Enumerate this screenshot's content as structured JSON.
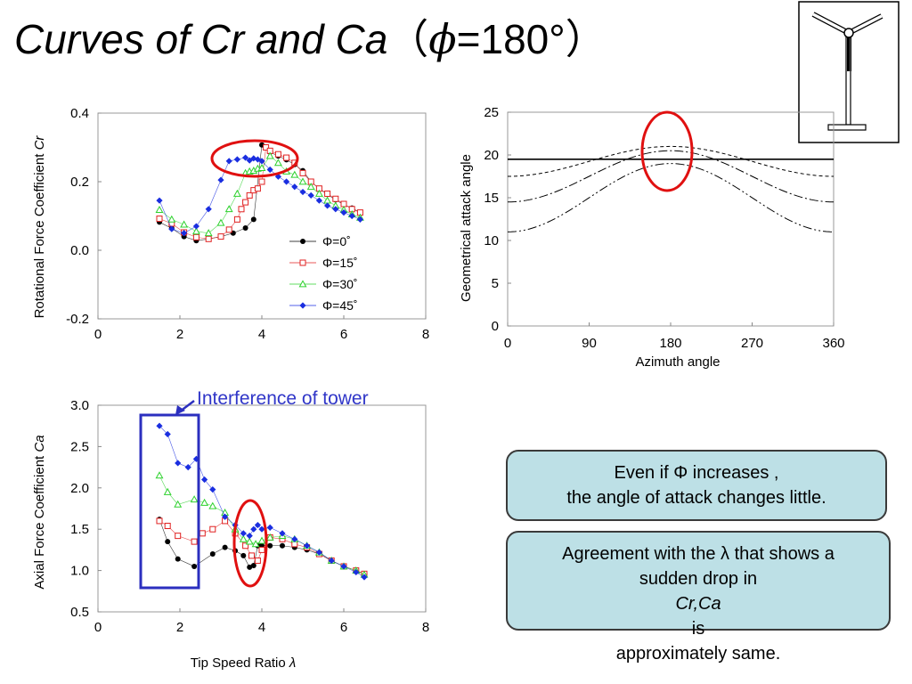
{
  "title": {
    "text_italic": "Curves of Cr and Ca",
    "open_paren": "（",
    "phi_symbol": "ϕ",
    "eq_value": "=180°",
    "close_paren": "）"
  },
  "annotation_tower": "Interference of tower",
  "callout1": {
    "line1": "Even if Φ increases ,",
    "line2": "the angle of attack changes little."
  },
  "callout2": {
    "line1": "Agreement with the λ that shows a",
    "line2a": "sudden drop in ",
    "line2b": "Cr,Ca",
    "line2c": " is",
    "line3": "approximately same."
  },
  "chart_data": [
    {
      "id": "cr",
      "type": "scatter",
      "ylabel_prefix": "Rotational Force Coefficient ",
      "ylabel_symbol": "Cr",
      "xlim": [
        0,
        8
      ],
      "ylim": [
        -0.2,
        0.4
      ],
      "xticks": [
        "0",
        "2",
        "4",
        "6",
        "8"
      ],
      "yticks": [
        "-0.2",
        "0.0",
        "0.2",
        "0.4"
      ],
      "legend_position": "center-right",
      "series": [
        {
          "name": "Φ=0˚",
          "marker": "circle",
          "color": "#000000",
          "x": [
            1.5,
            1.8,
            2.1,
            2.4,
            2.7,
            3.0,
            3.3,
            3.6,
            3.8,
            4.0,
            4.2,
            4.4,
            4.6,
            4.8,
            5.0,
            5.2,
            5.4,
            5.6,
            5.8,
            6.0,
            6.2,
            6.4
          ],
          "y": [
            0.082,
            0.064,
            0.04,
            0.028,
            0.033,
            0.04,
            0.05,
            0.065,
            0.09,
            0.307,
            0.286,
            0.275,
            0.264,
            0.25,
            0.232,
            0.2,
            0.18,
            0.163,
            0.147,
            0.133,
            0.123,
            0.11
          ]
        },
        {
          "name": "Φ=15˚",
          "marker": "square",
          "color": "#e02020",
          "x": [
            1.5,
            1.8,
            2.1,
            2.4,
            2.7,
            3.0,
            3.2,
            3.4,
            3.5,
            3.6,
            3.7,
            3.8,
            3.9,
            4.0,
            4.1,
            4.2,
            4.4,
            4.6,
            4.8,
            5.0,
            5.2,
            5.4,
            5.6,
            5.8,
            6.0,
            6.2,
            6.4
          ],
          "y": [
            0.092,
            0.078,
            0.052,
            0.038,
            0.033,
            0.04,
            0.06,
            0.09,
            0.12,
            0.14,
            0.16,
            0.175,
            0.18,
            0.2,
            0.3,
            0.29,
            0.28,
            0.27,
            0.255,
            0.225,
            0.2,
            0.18,
            0.165,
            0.15,
            0.135,
            0.12,
            0.11
          ]
        },
        {
          "name": "Φ=30˚",
          "marker": "triangle",
          "color": "#2dd12d",
          "x": [
            1.5,
            1.8,
            2.1,
            2.4,
            2.7,
            3.0,
            3.2,
            3.4,
            3.6,
            3.7,
            3.8,
            3.9,
            4.0,
            4.2,
            4.4,
            4.6,
            4.8,
            5.0,
            5.2,
            5.4,
            5.6,
            5.8,
            6.0,
            6.2,
            6.4
          ],
          "y": [
            0.118,
            0.09,
            0.075,
            0.055,
            0.05,
            0.08,
            0.12,
            0.165,
            0.225,
            0.23,
            0.232,
            0.238,
            0.24,
            0.275,
            0.255,
            0.23,
            0.22,
            0.2,
            0.185,
            0.165,
            0.145,
            0.13,
            0.118,
            0.105,
            0.095
          ]
        },
        {
          "name": "Φ=45˚",
          "marker": "diamond",
          "color": "#1a2ee0",
          "x": [
            1.5,
            1.8,
            2.1,
            2.4,
            2.7,
            3.0,
            3.2,
            3.4,
            3.6,
            3.7,
            3.8,
            3.9,
            4.0,
            4.2,
            4.4,
            4.6,
            4.8,
            5.0,
            5.2,
            5.4,
            5.6,
            5.8,
            6.0,
            6.2,
            6.4
          ],
          "y": [
            0.145,
            0.062,
            0.05,
            0.07,
            0.12,
            0.205,
            0.26,
            0.265,
            0.27,
            0.262,
            0.268,
            0.265,
            0.26,
            0.235,
            0.215,
            0.2,
            0.185,
            0.17,
            0.16,
            0.145,
            0.13,
            0.12,
            0.11,
            0.1,
            0.09
          ]
        }
      ]
    },
    {
      "id": "geo",
      "type": "line",
      "xlabel": "Azimuth angle",
      "ylabel": "Geometrical attack angle",
      "xlim": [
        0,
        360
      ],
      "ylim": [
        0,
        25
      ],
      "xticks": [
        "0",
        "90",
        "180",
        "270",
        "360"
      ],
      "yticks": [
        "0",
        "5",
        "10",
        "15",
        "20",
        "25"
      ],
      "series": [
        {
          "style": "solid",
          "base": 19.5,
          "peak": 19.5
        },
        {
          "style": "dashed",
          "base": 17.5,
          "peak": 21.0
        },
        {
          "style": "dashdot",
          "base": 14.5,
          "peak": 20.5
        },
        {
          "style": "dashdotdot",
          "base": 11.0,
          "peak": 19.0
        }
      ]
    },
    {
      "id": "ca",
      "type": "scatter",
      "xlabel_prefix": "Tip Speed Ratio ",
      "xlabel_symbol": "λ",
      "ylabel_prefix": "Axial Force Coefficient ",
      "ylabel_symbol": "Ca",
      "xlim": [
        0,
        8
      ],
      "ylim": [
        0.5,
        3.0
      ],
      "xticks": [
        "0",
        "2",
        "4",
        "6",
        "8"
      ],
      "yticks": [
        "0.5",
        "1.0",
        "1.5",
        "2.0",
        "2.5",
        "3.0"
      ],
      "series": [
        {
          "name": "Φ=0˚",
          "marker": "circle",
          "color": "#000000",
          "x": [
            1.5,
            1.7,
            1.95,
            2.35,
            2.8,
            3.1,
            3.35,
            3.55,
            3.7,
            3.8,
            3.9,
            4.0,
            4.2,
            4.5,
            4.8,
            5.1,
            5.4,
            5.7,
            6.0,
            6.3,
            6.5
          ],
          "y": [
            1.62,
            1.35,
            1.14,
            1.05,
            1.2,
            1.28,
            1.24,
            1.18,
            1.04,
            1.06,
            1.3,
            1.3,
            1.3,
            1.3,
            1.28,
            1.25,
            1.2,
            1.12,
            1.05,
            1.0,
            0.96
          ]
        },
        {
          "name": "Φ=15˚",
          "marker": "square",
          "color": "#e02020",
          "x": [
            1.5,
            1.7,
            1.95,
            2.35,
            2.55,
            2.8,
            3.1,
            3.35,
            3.6,
            3.75,
            3.9,
            4.0,
            4.2,
            4.5,
            4.8,
            5.1,
            5.4,
            5.7,
            6.0,
            6.3,
            6.5
          ],
          "y": [
            1.6,
            1.54,
            1.42,
            1.35,
            1.45,
            1.5,
            1.6,
            1.45,
            1.3,
            1.18,
            1.12,
            1.25,
            1.4,
            1.38,
            1.32,
            1.28,
            1.2,
            1.12,
            1.05,
            1.0,
            0.96
          ]
        },
        {
          "name": "Φ=30˚",
          "marker": "triangle",
          "color": "#2dd12d",
          "x": [
            1.5,
            1.7,
            1.95,
            2.35,
            2.6,
            2.8,
            3.1,
            3.35,
            3.55,
            3.7,
            3.85,
            4.0,
            4.2,
            4.5,
            4.8,
            5.1,
            5.4,
            5.7,
            6.0,
            6.3,
            6.5
          ],
          "y": [
            2.15,
            1.95,
            1.8,
            1.86,
            1.82,
            1.78,
            1.7,
            1.5,
            1.38,
            1.35,
            1.32,
            1.36,
            1.4,
            1.42,
            1.38,
            1.3,
            1.22,
            1.12,
            1.05,
            1.0,
            0.95
          ]
        },
        {
          "name": "Φ=45˚",
          "marker": "diamond",
          "color": "#1a2ee0",
          "x": [
            1.5,
            1.7,
            1.95,
            2.2,
            2.4,
            2.6,
            2.8,
            3.1,
            3.35,
            3.55,
            3.7,
            3.8,
            3.9,
            4.0,
            4.2,
            4.5,
            4.8,
            5.1,
            5.4,
            5.7,
            6.0,
            6.3,
            6.5
          ],
          "y": [
            2.75,
            2.65,
            2.3,
            2.25,
            2.35,
            2.1,
            1.98,
            1.65,
            1.55,
            1.45,
            1.42,
            1.5,
            1.55,
            1.5,
            1.52,
            1.45,
            1.38,
            1.3,
            1.22,
            1.12,
            1.05,
            0.98,
            0.92
          ]
        }
      ]
    }
  ]
}
